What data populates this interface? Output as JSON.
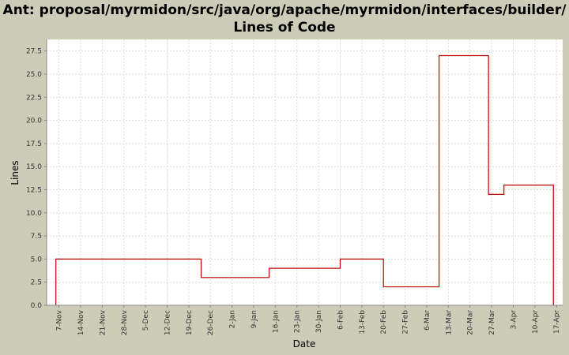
{
  "chart_data": {
    "type": "line",
    "step": true,
    "title": "Ant: proposal/myrmidon/src/java/org/apache/myrmidon/interfaces/builder/ Lines of Code",
    "xlabel": "Date",
    "ylabel": "Lines",
    "ylim": [
      0,
      28.75
    ],
    "xlim": [
      "2001-11-03",
      "2002-04-19"
    ],
    "yticks": [
      "0.0",
      "2.5",
      "5.0",
      "7.5",
      "10.0",
      "12.5",
      "15.0",
      "17.5",
      "20.0",
      "22.5",
      "25.0",
      "27.5"
    ],
    "xticks": [
      {
        "label": "7-Nov",
        "date": "2001-11-07"
      },
      {
        "label": "14-Nov",
        "date": "2001-11-14"
      },
      {
        "label": "21-Nov",
        "date": "2001-11-21"
      },
      {
        "label": "28-Nov",
        "date": "2001-11-28"
      },
      {
        "label": "5-Dec",
        "date": "2001-12-05"
      },
      {
        "label": "12-Dec",
        "date": "2001-12-12"
      },
      {
        "label": "19-Dec",
        "date": "2001-12-19"
      },
      {
        "label": "26-Dec",
        "date": "2001-12-26"
      },
      {
        "label": "2-Jan",
        "date": "2002-01-02"
      },
      {
        "label": "9-Jan",
        "date": "2002-01-09"
      },
      {
        "label": "16-Jan",
        "date": "2002-01-16"
      },
      {
        "label": "23-Jan",
        "date": "2002-01-23"
      },
      {
        "label": "30-Jan",
        "date": "2002-01-30"
      },
      {
        "label": "6-Feb",
        "date": "2002-02-06"
      },
      {
        "label": "13-Feb",
        "date": "2002-02-13"
      },
      {
        "label": "20-Feb",
        "date": "2002-02-20"
      },
      {
        "label": "27-Feb",
        "date": "2002-02-27"
      },
      {
        "label": "6-Mar",
        "date": "2002-03-06"
      },
      {
        "label": "13-Mar",
        "date": "2002-03-13"
      },
      {
        "label": "20-Mar",
        "date": "2002-03-20"
      },
      {
        "label": "27-Mar",
        "date": "2002-03-27"
      },
      {
        "label": "3-Apr",
        "date": "2002-04-03"
      },
      {
        "label": "10-Apr",
        "date": "2002-04-10"
      },
      {
        "label": "17-Apr",
        "date": "2002-04-17"
      }
    ],
    "grid": true,
    "legend": "none",
    "series": [
      {
        "color": "#c00000",
        "points": [
          {
            "x": "2001-11-06",
            "y": 0
          },
          {
            "x": "2001-11-06",
            "y": 5
          },
          {
            "x": "2001-12-23",
            "y": 3
          },
          {
            "x": "2002-01-14",
            "y": 4
          },
          {
            "x": "2002-02-06",
            "y": 5
          },
          {
            "x": "2002-02-20",
            "y": 2
          },
          {
            "x": "2002-03-10",
            "y": 27
          },
          {
            "x": "2002-03-26",
            "y": 12
          },
          {
            "x": "2002-03-31",
            "y": 13
          },
          {
            "x": "2002-04-16",
            "y": 0
          }
        ]
      }
    ],
    "colors": {
      "background": "#ccccb8",
      "plot_background": "#ffffff",
      "gridline": "#dddddd",
      "axis": "#888888"
    }
  }
}
